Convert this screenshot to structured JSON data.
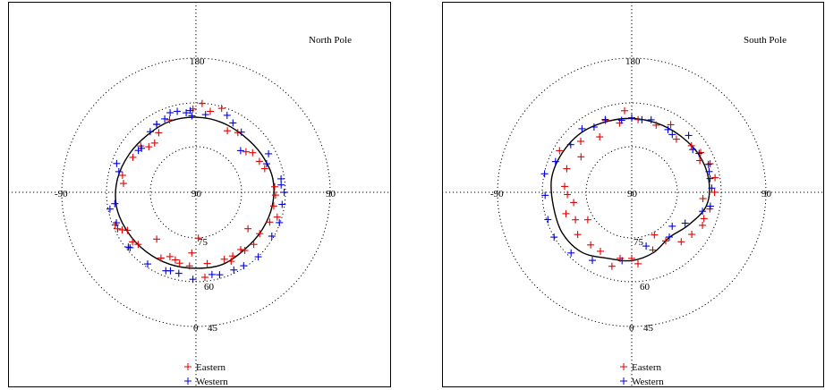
{
  "colors": {
    "eastern": "#e00000",
    "western": "#0000e0",
    "contour": "#000000"
  },
  "chart_data": [
    {
      "type": "scatter",
      "coordinate_system": "polar (latitude rings, longitude spokes)",
      "title": "North Pole",
      "ring_labels": [
        "75",
        "60",
        "45"
      ],
      "ring_latitudes": [
        75,
        60,
        45
      ],
      "axis_labels": {
        "top": "180",
        "left": "-90",
        "right": "90",
        "center": "90",
        "bottom": "0"
      },
      "grid": true,
      "legend": {
        "position": "bottom-center",
        "entries": [
          {
            "name": "Eastern",
            "marker": "+",
            "color": "#e00000"
          },
          {
            "name": "Western",
            "marker": "+",
            "color": "#0000e0"
          }
        ]
      },
      "series": [
        {
          "name": "Eastern",
          "color": "#e00000",
          "points": [
            {
              "lon": -5,
              "lat": 65.2
            },
            {
              "lon": -13,
              "lat": 65.6
            },
            {
              "lon": 9,
              "lat": 65.8
            },
            {
              "lon": -17,
              "lat": 66.3
            },
            {
              "lon": -4,
              "lat": 69.6
            },
            {
              "lon": -22,
              "lat": 66.7
            },
            {
              "lon": 23,
              "lat": 65.6
            },
            {
              "lon": 48,
              "lat": 63.9
            },
            {
              "lon": -48,
              "lat": 63.9
            },
            {
              "lon": 38,
              "lat": 65.6
            },
            {
              "lon": -52,
              "lat": 63.0
            },
            {
              "lon": -63,
              "lat": 62.2
            },
            {
              "lon": 68,
              "lat": 63.3
            },
            {
              "lon": -61,
              "lat": 63.7
            },
            {
              "lon": 80,
              "lat": 63.5
            },
            {
              "lon": 88,
              "lat": 63.3
            },
            {
              "lon": -97,
              "lat": 65.5
            },
            {
              "lon": 94,
              "lat": 63.5
            },
            {
              "lon": -103,
              "lat": 64.7
            },
            {
              "lon": -119,
              "lat": 65.8
            },
            {
              "lon": 116,
              "lat": 66.3
            },
            {
              "lon": -134,
              "lat": 68.0
            },
            {
              "lon": -140,
              "lat": 68.4
            },
            {
              "lon": 129,
              "lat": 68.4
            },
            {
              "lon": -148,
              "lat": 66.4
            },
            {
              "lon": 153,
              "lat": 66.8
            },
            {
              "lon": 3,
              "lat": 74.6
            },
            {
              "lon": 6,
              "lat": 61.3
            },
            {
              "lon": 27,
              "lat": 64.0
            },
            {
              "lon": -28,
              "lat": 65.0
            },
            {
              "lon": 40,
              "lat": 64.5
            },
            {
              "lon": 57,
              "lat": 64.5
            },
            {
              "lon": -65,
              "lat": 61.0
            },
            {
              "lon": -68,
              "lat": 60.8
            },
            {
              "lon": 73,
              "lat": 61.5
            },
            {
              "lon": 109,
              "lat": 65.6
            },
            {
              "lon": 125,
              "lat": 66.8
            },
            {
              "lon": -130,
              "lat": 65.8
            },
            {
              "lon": 145,
              "lat": 65.5
            },
            {
              "lon": -150,
              "lat": 63.7
            },
            {
              "lon": -160,
              "lat": 64.1
            },
            {
              "lon": 170,
              "lat": 62.4
            },
            {
              "lon": 163,
              "lat": 60.5
            },
            {
              "lon": 176,
              "lat": 60.1
            },
            {
              "lon": -178,
              "lat": 62.0
            },
            {
              "lon": 55,
              "lat": 68.7
            },
            {
              "lon": -40,
              "lat": 69.5
            },
            {
              "lon": 30,
              "lat": 65.3
            }
          ]
        },
        {
          "name": "Western",
          "color": "#0000e0",
          "points": [
            {
              "lon": -12,
              "lat": 62.2
            },
            {
              "lon": -21,
              "lat": 61.8
            },
            {
              "lon": 11,
              "lat": 61.9
            },
            {
              "lon": -18,
              "lat": 62.3
            },
            {
              "lon": 26,
              "lat": 61.0
            },
            {
              "lon": 33,
              "lat": 60.6
            },
            {
              "lon": 44,
              "lat": 59.9
            },
            {
              "lon": -50,
              "lat": 61.1
            },
            {
              "lon": -51,
              "lat": 60.8
            },
            {
              "lon": 60,
              "lat": 60.6
            },
            {
              "lon": -69,
              "lat": 61.4
            },
            {
              "lon": -82,
              "lat": 62.5
            },
            {
              "lon": 82,
              "lat": 60.8
            },
            {
              "lon": 90,
              "lat": 60.4
            },
            {
              "lon": -105,
              "lat": 63.2
            },
            {
              "lon": 118,
              "lat": 62.4
            },
            {
              "lon": -126,
              "lat": 66.1
            },
            {
              "lon": -129,
              "lat": 66.5
            },
            {
              "lon": -143,
              "lat": 64.5
            },
            {
              "lon": -157,
              "lat": 63.2
            },
            {
              "lon": 158,
              "lat": 62.1
            },
            {
              "lon": -173,
              "lat": 63.1
            },
            {
              "lon": -176,
              "lat": 62.5
            },
            {
              "lon": 173,
              "lat": 63.7
            },
            {
              "lon": -177,
              "lat": 64.3
            },
            {
              "lon": 133,
              "lat": 69.5
            },
            {
              "lon": -150,
              "lat": 63.6
            },
            {
              "lon": 112,
              "lat": 64.4
            },
            {
              "lon": -110,
              "lat": 61.7
            },
            {
              "lon": -2,
              "lat": 60.8
            },
            {
              "lon": -34,
              "lat": 61.0
            },
            {
              "lon": 16,
              "lat": 61.2
            },
            {
              "lon": -79,
              "lat": 60.6
            },
            {
              "lon": 95,
              "lat": 61.3
            },
            {
              "lon": 99,
              "lat": 61.1
            },
            {
              "lon": 143,
              "lat": 64.7
            },
            {
              "lon": -162,
              "lat": 61.9
            },
            {
              "lon": 152,
              "lat": 63.6
            },
            {
              "lon": -167,
              "lat": 62.1
            },
            {
              "lon": 70,
              "lat": 60.2
            }
          ]
        }
      ],
      "contour": [
        {
          "lon": 0,
          "lat": 64.5
        },
        {
          "lon": 20,
          "lat": 64.2
        },
        {
          "lon": 40,
          "lat": 64.8
        },
        {
          "lon": 60,
          "lat": 64.5
        },
        {
          "lon": 80,
          "lat": 64.0
        },
        {
          "lon": 100,
          "lat": 63.8
        },
        {
          "lon": 120,
          "lat": 64.6
        },
        {
          "lon": 140,
          "lat": 65.2
        },
        {
          "lon": 160,
          "lat": 65.0
        },
        {
          "lon": 180,
          "lat": 64.8
        },
        {
          "lon": -160,
          "lat": 64.6
        },
        {
          "lon": -140,
          "lat": 64.8
        },
        {
          "lon": -120,
          "lat": 64.2
        },
        {
          "lon": -100,
          "lat": 63.3
        },
        {
          "lon": -80,
          "lat": 62.9
        },
        {
          "lon": -60,
          "lat": 63.5
        },
        {
          "lon": -40,
          "lat": 64.0
        },
        {
          "lon": -20,
          "lat": 64.3
        },
        {
          "lon": 0,
          "lat": 64.5
        }
      ]
    },
    {
      "type": "scatter",
      "coordinate_system": "polar (latitude rings, longitude spokes)",
      "title": "South Pole",
      "ring_labels": [
        "75",
        "60",
        "45"
      ],
      "ring_latitudes": [
        75,
        60,
        45
      ],
      "axis_labels": {
        "top": "180",
        "left": "-90",
        "right": "90",
        "center": "90",
        "bottom": "0"
      },
      "grid": true,
      "legend": {
        "position": "bottom-center",
        "entries": [
          {
            "name": "Eastern",
            "marker": "+",
            "color": "#e00000"
          },
          {
            "name": "Western",
            "marker": "+",
            "color": "#0000e0"
          }
        ]
      },
      "series": [
        {
          "name": "Eastern",
          "color": "#e00000",
          "points": [
            {
              "lon": 0,
              "lat": 67.8
            },
            {
              "lon": -10,
              "lat": 67.5
            },
            {
              "lon": 20,
              "lat": 69.4
            },
            {
              "lon": 35,
              "lat": 70.1
            },
            {
              "lon": 45,
              "lat": 66.5
            },
            {
              "lon": -28,
              "lat": 67.6
            },
            {
              "lon": -38,
              "lat": 67.6
            },
            {
              "lon": 55,
              "lat": 65.4
            },
            {
              "lon": 65,
              "lat": 63.8
            },
            {
              "lon": -52,
              "lat": 67.0
            },
            {
              "lon": 78,
              "lat": 63.2
            },
            {
              "lon": -64,
              "lat": 69.0
            },
            {
              "lon": 90,
              "lat": 62.2
            },
            {
              "lon": -72,
              "lat": 66.8
            },
            {
              "lon": 100,
              "lat": 61.6
            },
            {
              "lon": -80,
              "lat": 70.2
            },
            {
              "lon": 110,
              "lat": 62.0
            },
            {
              "lon": -95,
              "lat": 67.4
            },
            {
              "lon": 120,
              "lat": 63.3
            },
            {
              "lon": -110,
              "lat": 66.8
            },
            {
              "lon": 128,
              "lat": 64.6
            },
            {
              "lon": -125,
              "lat": 69.2
            },
            {
              "lon": 140,
              "lat": 66.7
            },
            {
              "lon": -150,
              "lat": 68.5
            },
            {
              "lon": 160,
              "lat": 66.0
            },
            {
              "lon": 175,
              "lat": 65.5
            },
            {
              "lon": -170,
              "lat": 66.4
            },
            {
              "lon": 5,
              "lat": 65.9
            },
            {
              "lon": -15,
              "lat": 64.3
            },
            {
              "lon": 28,
              "lat": 73.8
            },
            {
              "lon": 85,
              "lat": 66.0
            },
            {
              "lon": -88,
              "lat": 68.4
            },
            {
              "lon": 115,
              "lat": 64.8
            },
            {
              "lon": -135,
              "lat": 65.8
            },
            {
              "lon": 150,
              "lat": 63.8
            },
            {
              "lon": -160,
              "lat": 64.3
            },
            {
              "lon": 185,
              "lat": 62.5
            },
            {
              "lon": -58,
              "lat": 72.6
            },
            {
              "lon": 70,
              "lat": 64.2
            },
            {
              "lon": -120,
              "lat": 62.0
            }
          ]
        },
        {
          "name": "Western",
          "color": "#0000e0",
          "points": [
            {
              "lon": -8,
              "lat": 66.8
            },
            {
              "lon": 40,
              "lat": 70.4
            },
            {
              "lon": 50,
              "lat": 72.3
            },
            {
              "lon": 60,
              "lat": 69.3
            },
            {
              "lon": -45,
              "lat": 61.2
            },
            {
              "lon": -60,
              "lat": 59.9
            },
            {
              "lon": 75,
              "lat": 65.4
            },
            {
              "lon": -72,
              "lat": 60.4
            },
            {
              "lon": 93,
              "lat": 63.1
            },
            {
              "lon": -88,
              "lat": 60.9
            },
            {
              "lon": 105,
              "lat": 63.1
            },
            {
              "lon": -102,
              "lat": 60.1
            },
            {
              "lon": -112,
              "lat": 62.4
            },
            {
              "lon": 125,
              "lat": 65.0
            },
            {
              "lon": -128,
              "lat": 64.0
            },
            {
              "lon": 135,
              "lat": 63.0
            },
            {
              "lon": -142,
              "lat": 62.9
            },
            {
              "lon": 150,
              "lat": 65.7
            },
            {
              "lon": -160,
              "lat": 64.0
            },
            {
              "lon": 165,
              "lat": 64.8
            },
            {
              "lon": -172,
              "lat": 65.6
            },
            {
              "lon": 172,
              "lat": 65.4
            },
            {
              "lon": 180,
              "lat": 65.0
            },
            {
              "lon": -180,
              "lat": 65.0
            },
            {
              "lon": 120,
              "lat": 63.9
            },
            {
              "lon": 80,
              "lat": 63.2
            },
            {
              "lon": -30,
              "lat": 63.6
            },
            {
              "lon": 145,
              "lat": 66.3
            },
            {
              "lon": -150,
              "lat": 64.7
            },
            {
              "lon": 100,
              "lat": 63.3
            },
            {
              "lon": 110,
              "lat": 62.6
            },
            {
              "lon": 15,
              "lat": 71.3
            }
          ]
        }
      ],
      "contour": [
        {
          "lon": 0,
          "lat": 67.1
        },
        {
          "lon": 20,
          "lat": 68.5
        },
        {
          "lon": 40,
          "lat": 70.3
        },
        {
          "lon": 60,
          "lat": 68.0
        },
        {
          "lon": 80,
          "lat": 64.5
        },
        {
          "lon": 100,
          "lat": 63.8
        },
        {
          "lon": 120,
          "lat": 64.2
        },
        {
          "lon": 140,
          "lat": 65.0
        },
        {
          "lon": 160,
          "lat": 65.3
        },
        {
          "lon": 180,
          "lat": 65.2
        },
        {
          "lon": -160,
          "lat": 64.8
        },
        {
          "lon": -140,
          "lat": 63.8
        },
        {
          "lon": -120,
          "lat": 63.2
        },
        {
          "lon": -100,
          "lat": 62.7
        },
        {
          "lon": -80,
          "lat": 63.3
        },
        {
          "lon": -60,
          "lat": 63.0
        },
        {
          "lon": -40,
          "lat": 63.8
        },
        {
          "lon": -20,
          "lat": 66.4
        },
        {
          "lon": 0,
          "lat": 67.1
        }
      ]
    }
  ]
}
